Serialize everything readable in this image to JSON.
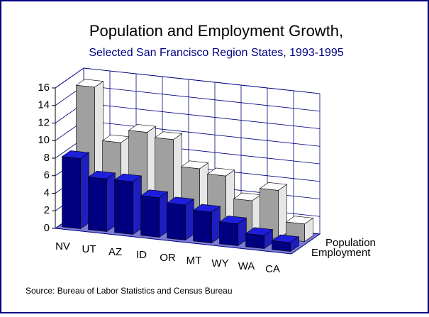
{
  "chart_data": {
    "type": "bar3d",
    "title": "Population and Employment Growth,",
    "subtitle": "Selected San Francisco Region States, 1993-1995",
    "note": "Source:  Bureau of Labor Statistics and Census Bureau",
    "categories": [
      "NV",
      "UT",
      "AZ",
      "ID",
      "OR",
      "MT",
      "WY",
      "WA",
      "CA"
    ],
    "series": [
      {
        "name": "Employment",
        "color": "#000080",
        "values": [
          8,
          6,
          6,
          4.5,
          4,
          3.5,
          2.5,
          1.5,
          1
        ]
      },
      {
        "name": "Population",
        "color": "#a0a0a0",
        "values": [
          15,
          9,
          10.5,
          10,
          7,
          6.5,
          4,
          5.5,
          2
        ]
      }
    ],
    "ylim": [
      0,
      16
    ],
    "yticks": [
      0,
      2,
      4,
      6,
      8,
      10,
      12,
      14,
      16
    ],
    "grid": true
  }
}
